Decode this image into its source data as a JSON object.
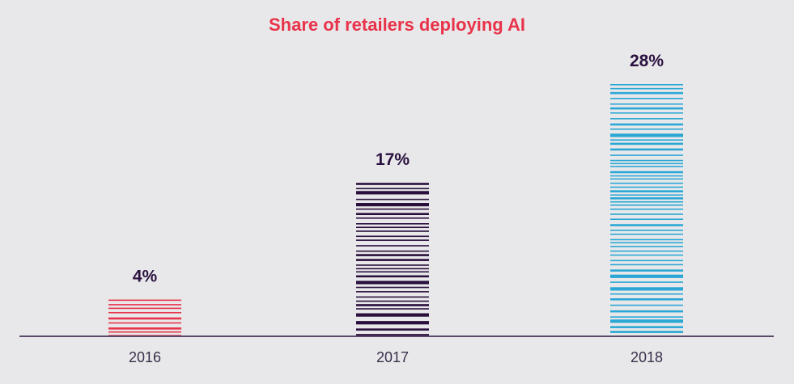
{
  "chart_data": {
    "type": "bar",
    "title": "Share of retailers deploying AI",
    "categories": [
      "2016",
      "2017",
      "2018"
    ],
    "values": [
      4,
      17,
      28
    ],
    "value_labels": [
      "4%",
      "17%",
      "28%"
    ],
    "ylim": [
      0,
      28
    ],
    "xlabel": "",
    "ylabel": "",
    "grid": false,
    "legend": "none",
    "colors": [
      "#e8334a",
      "#2a0f3c",
      "#2aa7d4"
    ]
  }
}
